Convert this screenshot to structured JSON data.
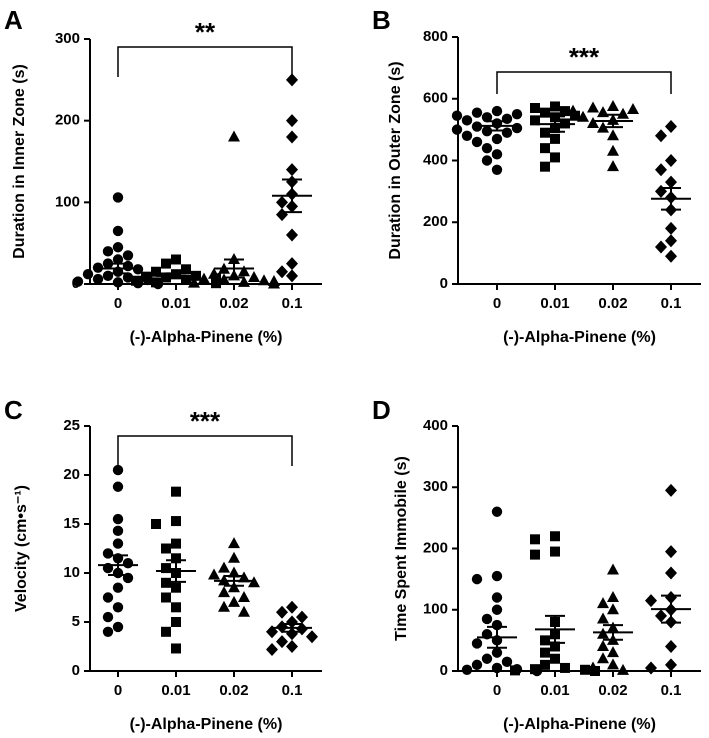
{
  "chart_data": [
    {
      "panel": "A",
      "type": "scatter",
      "ylabel": "Duration in Inner Zone (s)",
      "xlabel": "(-)-Alpha-Pinene (%)",
      "categories": [
        "0",
        "0.01",
        "0.02",
        "0.1"
      ],
      "ylim": [
        0,
        300
      ],
      "yticks": [
        "0",
        "100",
        "200",
        "300"
      ],
      "significance": {
        "label": "**",
        "from": 0,
        "to": 3
      },
      "groups": [
        {
          "marker": "circle",
          "mean": 19,
          "sem": 6,
          "values": [
            106,
            65,
            45,
            40,
            35,
            30,
            25,
            22,
            20,
            18,
            15,
            12,
            10,
            8,
            6,
            5,
            3,
            2,
            1,
            0
          ]
        },
        {
          "marker": "square",
          "mean": 10,
          "sem": 3,
          "values": [
            30,
            25,
            18,
            15,
            12,
            10,
            9,
            8,
            7,
            6,
            5,
            4,
            3,
            2,
            1
          ]
        },
        {
          "marker": "triangle",
          "mean": 19,
          "sem": 11,
          "values": [
            180,
            30,
            18,
            15,
            12,
            10,
            8,
            6,
            5,
            4,
            3,
            2,
            1,
            0
          ]
        },
        {
          "marker": "diamond",
          "mean": 108,
          "sem": 20,
          "values": [
            250,
            200,
            180,
            140,
            125,
            110,
            100,
            95,
            85,
            60,
            25,
            15,
            10
          ]
        }
      ]
    },
    {
      "panel": "B",
      "type": "scatter",
      "ylabel": "Duration in Outer Zone (s)",
      "xlabel": "(-)-Alpha-Pinene (%)",
      "categories": [
        "0",
        "0.01",
        "0.02",
        "0.1"
      ],
      "ylim": [
        0,
        800
      ],
      "yticks": [
        "0",
        "200",
        "400",
        "600",
        "800"
      ],
      "significance": {
        "label": "***",
        "from": 0,
        "to": 3
      },
      "groups": [
        {
          "marker": "circle",
          "mean": 512,
          "sem": 15,
          "values": [
            560,
            555,
            550,
            545,
            540,
            535,
            530,
            520,
            510,
            505,
            500,
            495,
            490,
            480,
            470,
            460,
            440,
            420,
            400,
            370
          ]
        },
        {
          "marker": "square",
          "mean": 518,
          "sem": 25,
          "values": [
            575,
            570,
            560,
            555,
            545,
            540,
            530,
            520,
            505,
            490,
            470,
            440,
            410,
            380
          ]
        },
        {
          "marker": "triangle",
          "mean": 528,
          "sem": 20,
          "values": [
            575,
            570,
            565,
            560,
            555,
            550,
            540,
            530,
            520,
            505,
            480,
            430,
            380
          ]
        },
        {
          "marker": "diamond",
          "mean": 276,
          "sem": 35,
          "values": [
            510,
            480,
            400,
            370,
            330,
            300,
            280,
            240,
            180,
            140,
            120,
            90
          ]
        }
      ]
    },
    {
      "panel": "C",
      "type": "scatter",
      "ylabel": "Velocity (cm•s⁻¹)",
      "xlabel": "(-)-Alpha-Pinene (%)",
      "categories": [
        "0",
        "0.01",
        "0.02",
        "0.1"
      ],
      "ylim": [
        0,
        25
      ],
      "yticks": [
        "0",
        "5",
        "10",
        "15",
        "20",
        "25"
      ],
      "significance": {
        "label": "***",
        "from": 0,
        "to": 3
      },
      "groups": [
        {
          "marker": "circle",
          "mean": 10.8,
          "sem": 1.0,
          "values": [
            20.5,
            18.8,
            15.5,
            14.3,
            13.0,
            12.0,
            11.5,
            11.0,
            10.5,
            10.0,
            9.5,
            8.5,
            7.5,
            6.5,
            5.5,
            4.5,
            4.0
          ]
        },
        {
          "marker": "square",
          "mean": 10.2,
          "sem": 1.1,
          "values": [
            18.3,
            15.3,
            15.0,
            13.0,
            12.5,
            11.5,
            10.5,
            10.0,
            9.0,
            8.5,
            7.5,
            6.5,
            5.0,
            4.0,
            2.3
          ]
        },
        {
          "marker": "triangle",
          "mean": 9.2,
          "sem": 0.5,
          "values": [
            13.0,
            11.5,
            10.5,
            10.0,
            9.8,
            9.5,
            9.2,
            9.0,
            8.5,
            8.0,
            7.5,
            7.0,
            6.5,
            6.0
          ]
        },
        {
          "marker": "diamond",
          "mean": 4.4,
          "sem": 0.4,
          "values": [
            6.5,
            6.0,
            5.5,
            5.0,
            4.5,
            4.3,
            4.0,
            3.8,
            3.5,
            3.0,
            2.5,
            2.2
          ]
        }
      ]
    },
    {
      "panel": "D",
      "type": "scatter",
      "ylabel": "Time Spent Immobile (s)",
      "xlabel": "(-)-Alpha-Pinene (%)",
      "categories": [
        "0",
        "0.01",
        "0.02",
        "0.1"
      ],
      "ylim": [
        0,
        400
      ],
      "yticks": [
        "0",
        "100",
        "200",
        "300",
        "400"
      ],
      "groups": [
        {
          "marker": "circle",
          "mean": 55,
          "sem": 17,
          "values": [
            260,
            155,
            150,
            120,
            100,
            85,
            75,
            60,
            50,
            45,
            30,
            20,
            15,
            10,
            5,
            3,
            2,
            1,
            0
          ]
        },
        {
          "marker": "square",
          "mean": 68,
          "sem": 22,
          "values": [
            220,
            215,
            195,
            190,
            80,
            60,
            50,
            40,
            30,
            20,
            10,
            5,
            3,
            2,
            1,
            0
          ]
        },
        {
          "marker": "triangle",
          "mean": 63,
          "sem": 12,
          "values": [
            165,
            120,
            110,
            100,
            85,
            70,
            60,
            50,
            40,
            30,
            20,
            10,
            5,
            1
          ]
        },
        {
          "marker": "diamond",
          "mean": 101,
          "sem": 22,
          "values": [
            295,
            195,
            160,
            120,
            115,
            100,
            90,
            80,
            40,
            10,
            5
          ]
        }
      ]
    }
  ]
}
